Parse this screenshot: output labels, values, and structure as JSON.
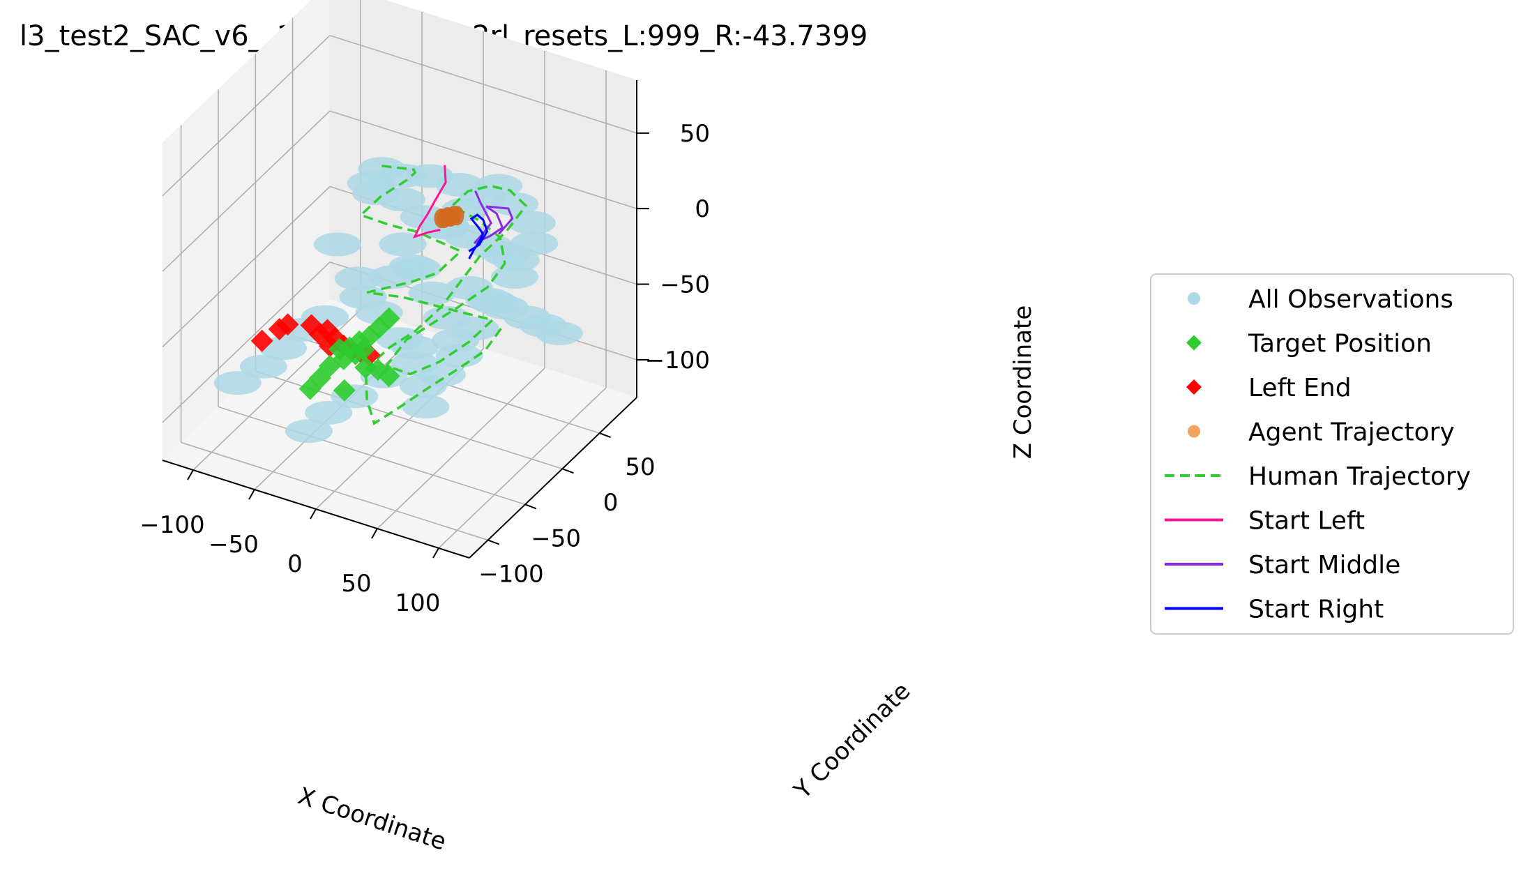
{
  "chart_data": {
    "type": "scatter3d",
    "title": "l3_test2_SAC_v6__1vae_resets__2rl_resets_L:999_R:-43.7399",
    "xlabel": "X Coordinate",
    "ylabel": "Y Coordinate",
    "zlabel": "Z Coordinate",
    "xlim": [
      -125,
      125
    ],
    "ylim": [
      -125,
      100
    ],
    "zlim": [
      -125,
      85
    ],
    "xticks": [
      "−100",
      "−50",
      "0",
      "50",
      "100"
    ],
    "yticks": [
      "−100",
      "−50",
      "0",
      "50"
    ],
    "zticks": [
      "50",
      "0",
      "−50",
      "−100"
    ],
    "grid": true,
    "legend_position": "right",
    "legend": [
      {
        "label": "All Observations",
        "marker": "circle",
        "color": "#add8e6"
      },
      {
        "label": "Target Position",
        "marker": "diamond",
        "color": "#2ecc2e"
      },
      {
        "label": "Left End",
        "marker": "diamond",
        "color": "#ff0000"
      },
      {
        "label": "Agent Trajectory",
        "marker": "circle",
        "color": "#f4a460"
      },
      {
        "label": "Human Trajectory",
        "marker": "dashed-line",
        "color": "#32cd32"
      },
      {
        "label": "Start Left",
        "marker": "line",
        "color": "#ff1493"
      },
      {
        "label": "Start Middle",
        "marker": "line",
        "color": "#8a2be2"
      },
      {
        "label": "Start Right",
        "marker": "line",
        "color": "#0000ff"
      }
    ],
    "series": [
      {
        "name": "All Observations",
        "color": "#add8e6",
        "points": [
          [
            -10,
            -20,
            48
          ],
          [
            5,
            -15,
            45
          ],
          [
            20,
            -5,
            44
          ],
          [
            35,
            10,
            35
          ],
          [
            -25,
            -10,
            30
          ],
          [
            -30,
            5,
            15
          ],
          [
            -15,
            15,
            10
          ],
          [
            0,
            20,
            0
          ],
          [
            15,
            25,
            -5
          ],
          [
            30,
            30,
            -10
          ],
          [
            45,
            35,
            -15
          ],
          [
            55,
            40,
            -20
          ],
          [
            60,
            45,
            -25
          ],
          [
            -5,
            0,
            -10
          ],
          [
            10,
            -5,
            -20
          ],
          [
            25,
            -10,
            -30
          ],
          [
            40,
            -15,
            -40
          ],
          [
            50,
            -20,
            -50
          ],
          [
            -40,
            -30,
            -5
          ],
          [
            -20,
            -35,
            -20
          ],
          [
            0,
            -40,
            -35
          ],
          [
            20,
            -45,
            -45
          ],
          [
            35,
            -50,
            -55
          ],
          [
            45,
            -55,
            -65
          ],
          [
            50,
            -60,
            -75
          ],
          [
            -60,
            -70,
            -60
          ],
          [
            -70,
            -80,
            -70
          ],
          [
            -85,
            -90,
            -80
          ],
          [
            -50,
            -60,
            -50
          ],
          [
            -35,
            -55,
            -40
          ],
          [
            -10,
            -45,
            -25
          ],
          [
            5,
            -30,
            -15
          ],
          [
            15,
            -20,
            -10
          ],
          [
            30,
            0,
            10
          ],
          [
            40,
            10,
            20
          ],
          [
            48,
            20,
            25
          ],
          [
            55,
            30,
            30
          ],
          [
            62,
            40,
            15
          ],
          [
            70,
            50,
            0
          ],
          [
            75,
            45,
            -10
          ],
          [
            65,
            35,
            -30
          ],
          [
            55,
            25,
            -45
          ],
          [
            45,
            15,
            -60
          ],
          [
            38,
            5,
            -75
          ],
          [
            30,
            -5,
            -85
          ],
          [
            20,
            -25,
            -60
          ],
          [
            10,
            -50,
            -70
          ],
          [
            -5,
            -65,
            -80
          ],
          [
            -20,
            -75,
            -90
          ],
          [
            -30,
            -85,
            -100
          ],
          [
            25,
            40,
            -50
          ],
          [
            35,
            50,
            -60
          ],
          [
            45,
            55,
            -65
          ],
          [
            60,
            60,
            -70
          ],
          [
            70,
            65,
            -75
          ],
          [
            80,
            70,
            -80
          ]
        ]
      },
      {
        "name": "Human Trajectory",
        "color": "#32cd32",
        "points": [
          [
            -10,
            -20,
            50
          ],
          [
            10,
            -10,
            48
          ],
          [
            5,
            0,
            40
          ],
          [
            -5,
            5,
            30
          ],
          [
            -20,
            -5,
            20
          ],
          [
            -30,
            -15,
            10
          ],
          [
            -15,
            0,
            0
          ],
          [
            0,
            10,
            -5
          ],
          [
            15,
            15,
            -10
          ],
          [
            30,
            20,
            -15
          ],
          [
            20,
            5,
            -25
          ],
          [
            5,
            -5,
            -30
          ],
          [
            -10,
            -10,
            -35
          ],
          [
            -25,
            -15,
            -40
          ],
          [
            -5,
            0,
            -45
          ],
          [
            15,
            10,
            -50
          ],
          [
            35,
            20,
            -55
          ],
          [
            50,
            30,
            -60
          ],
          [
            40,
            15,
            -70
          ],
          [
            25,
            0,
            -80
          ],
          [
            10,
            -15,
            -85
          ],
          [
            0,
            -30,
            -75
          ],
          [
            10,
            -20,
            -60
          ],
          [
            25,
            -10,
            -50
          ],
          [
            40,
            0,
            -40
          ],
          [
            55,
            15,
            -30
          ],
          [
            60,
            30,
            -20
          ],
          [
            50,
            40,
            -10
          ],
          [
            35,
            35,
            0
          ],
          [
            20,
            25,
            10
          ],
          [
            30,
            30,
            20
          ],
          [
            45,
            35,
            25
          ],
          [
            55,
            45,
            20
          ],
          [
            65,
            50,
            10
          ],
          [
            55,
            40,
            -5
          ],
          [
            40,
            30,
            -20
          ],
          [
            30,
            20,
            -35
          ],
          [
            20,
            10,
            -50
          ],
          [
            5,
            0,
            -65
          ],
          [
            -10,
            -10,
            -75
          ],
          [
            -20,
            -25,
            -85
          ],
          [
            -10,
            -40,
            -95
          ],
          [
            5,
            -55,
            -100
          ],
          [
            20,
            -45,
            -90
          ],
          [
            35,
            -30,
            -80
          ],
          [
            50,
            -20,
            -70
          ],
          [
            65,
            -5,
            -60
          ],
          [
            70,
            10,
            -50
          ]
        ]
      },
      {
        "name": "Start Left",
        "color": "#ff1493",
        "points": [
          [
            28,
            2,
            50
          ],
          [
            30,
            0,
            40
          ],
          [
            25,
            -5,
            30
          ],
          [
            20,
            -8,
            20
          ],
          [
            15,
            -10,
            12
          ],
          [
            12,
            -12,
            5
          ],
          [
            20,
            -8,
            8
          ],
          [
            28,
            -4,
            10
          ]
        ]
      },
      {
        "name": "Start Middle",
        "color": "#8a2be2",
        "points": [
          [
            42,
            20,
            28
          ],
          [
            45,
            22,
            20
          ],
          [
            48,
            25,
            12
          ],
          [
            50,
            28,
            5
          ],
          [
            45,
            25,
            -2
          ],
          [
            40,
            22,
            -8
          ],
          [
            48,
            30,
            -5
          ],
          [
            55,
            35,
            0
          ],
          [
            52,
            32,
            10
          ],
          [
            46,
            28,
            15
          ],
          [
            58,
            38,
            12
          ],
          [
            60,
            40,
            5
          ],
          [
            52,
            35,
            -5
          ]
        ]
      },
      {
        "name": "Start Right",
        "color": "#0000ff",
        "points": [
          [
            40,
            15,
            -15
          ],
          [
            42,
            18,
            -10
          ],
          [
            45,
            20,
            -5
          ],
          [
            47,
            22,
            0
          ],
          [
            44,
            20,
            5
          ],
          [
            40,
            18,
            10
          ],
          [
            43,
            21,
            12
          ],
          [
            46,
            24,
            8
          ],
          [
            48,
            26,
            0
          ],
          [
            44,
            22,
            -8
          ],
          [
            38,
            18,
            -12
          ]
        ]
      },
      {
        "name": "Agent Trajectory",
        "color": "#f4a460",
        "points": [
          [
            25,
            2,
            14
          ],
          [
            27,
            3,
            14
          ],
          [
            29,
            4,
            15
          ],
          [
            31,
            5,
            15
          ],
          [
            33,
            6,
            16
          ],
          [
            35,
            7,
            16
          ]
        ]
      },
      {
        "name": "Target Position",
        "color": "#2ecc2e",
        "points": [
          [
            -20,
            -60,
            -55
          ],
          [
            -15,
            -55,
            -55
          ],
          [
            -10,
            -50,
            -52
          ],
          [
            -5,
            -45,
            -50
          ],
          [
            -18,
            -58,
            -62
          ],
          [
            -25,
            -65,
            -65
          ],
          [
            -30,
            -70,
            -72
          ],
          [
            -35,
            -75,
            -78
          ],
          [
            -12,
            -52,
            -60
          ],
          [
            -8,
            -48,
            -58
          ],
          [
            0,
            -40,
            -45
          ],
          [
            5,
            -35,
            -40
          ],
          [
            -5,
            -50,
            -68
          ],
          [
            2,
            -45,
            -70
          ],
          [
            8,
            -40,
            -75
          ],
          [
            -15,
            -62,
            -80
          ]
        ]
      },
      {
        "name": "Left End",
        "color": "#ff0000",
        "points": [
          [
            -60,
            -75,
            -45
          ],
          [
            -55,
            -72,
            -42
          ],
          [
            -70,
            -82,
            -52
          ],
          [
            -40,
            -65,
            -42
          ],
          [
            -30,
            -60,
            -45
          ],
          [
            -25,
            -58,
            -50
          ],
          [
            -20,
            -55,
            -55
          ],
          [
            -15,
            -52,
            -58
          ],
          [
            -10,
            -48,
            -60
          ],
          [
            -35,
            -62,
            -48
          ],
          [
            -28,
            -60,
            -55
          ],
          [
            -5,
            -45,
            -62
          ]
        ]
      }
    ]
  }
}
